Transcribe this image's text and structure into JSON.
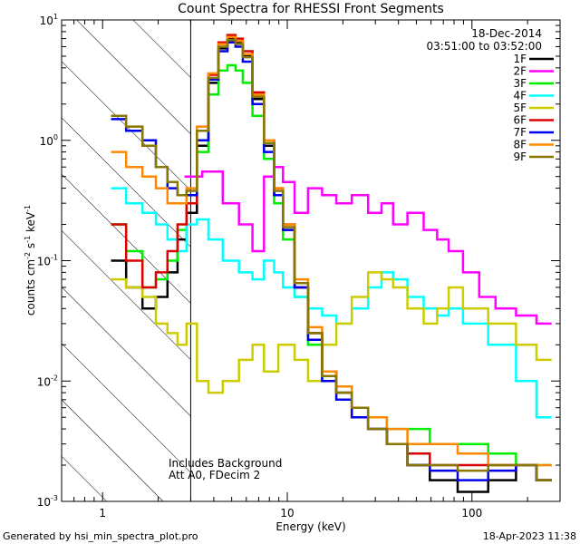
{
  "chart_data": {
    "type": "line",
    "title": "Count Spectra for RHESSI Front Segments",
    "xlabel": "Energy (keV)",
    "ylabel": "counts cm-2 s-1 keV-1",
    "ylabel_parts": {
      "base": "counts cm",
      "e1": "-2",
      "s": " s",
      "e2": "-1",
      "k": " keV",
      "e3": "-1"
    },
    "x_scale": "log",
    "y_scale": "log",
    "xlim": [
      0.6,
      300
    ],
    "ylim": [
      0.001,
      10
    ],
    "x_ticks": [
      {
        "value": 1,
        "label": "1"
      },
      {
        "value": 10,
        "label": "10"
      },
      {
        "value": 100,
        "label": "100"
      }
    ],
    "y_ticks": [
      {
        "value": 0.001,
        "base": "10",
        "exp": "-3"
      },
      {
        "value": 0.01,
        "base": "10",
        "exp": "-2"
      },
      {
        "value": 0.1,
        "base": "10",
        "exp": "-1"
      },
      {
        "value": 1,
        "base": "10",
        "exp": "0"
      },
      {
        "value": 10,
        "base": "10",
        "exp": "1"
      }
    ],
    "hatched_region": {
      "x_from": 0.6,
      "x_to": 3
    },
    "date": "18-Dec-2014",
    "time_range": "03:51:00 to 03:52:00",
    "annotations": [
      "Includes Background",
      "Att A0, FDecim 2"
    ],
    "footer_left": "Generated by hsi_min_spectra_plot.pro",
    "footer_right": "18-Apr-2023 11:38",
    "legend_position": "top-right",
    "series": [
      {
        "name": "1F",
        "color": "#000000",
        "x": [
          1.2,
          1.5,
          1.8,
          2.1,
          2.4,
          2.7,
          3,
          3.5,
          4,
          4.5,
          5,
          5.5,
          6,
          7,
          8,
          9,
          10,
          12,
          14,
          17,
          20,
          25,
          30,
          40,
          50,
          70,
          100,
          150,
          200,
          250
        ],
        "y": [
          0.1,
          0.06,
          0.04,
          0.05,
          0.08,
          0.15,
          0.25,
          0.9,
          3.0,
          5.8,
          7.0,
          6.5,
          5.0,
          2.2,
          0.9,
          0.35,
          0.18,
          0.06,
          0.025,
          0.012,
          0.008,
          0.005,
          0.004,
          0.003,
          0.002,
          0.0015,
          0.0012,
          0.0015,
          0.002,
          0.0015
        ]
      },
      {
        "name": "2F",
        "color": "#ff00ff",
        "x": [
          3,
          4,
          5,
          6,
          7,
          8,
          9,
          10,
          12,
          14,
          17,
          20,
          25,
          30,
          35,
          40,
          50,
          60,
          70,
          80,
          100,
          120,
          150,
          200,
          250
        ],
        "y": [
          0.5,
          0.55,
          0.3,
          0.2,
          0.12,
          0.5,
          0.6,
          0.45,
          0.25,
          0.4,
          0.35,
          0.3,
          0.35,
          0.25,
          0.3,
          0.2,
          0.25,
          0.18,
          0.15,
          0.12,
          0.08,
          0.05,
          0.04,
          0.035,
          0.03
        ]
      },
      {
        "name": "3F",
        "color": "#00ee00",
        "x": [
          1.2,
          1.5,
          1.8,
          2.1,
          2.4,
          2.7,
          3,
          3.5,
          4,
          4.5,
          5,
          5.5,
          6,
          7,
          8,
          9,
          10,
          12,
          14,
          17,
          20,
          25,
          30,
          40,
          50,
          70,
          100,
          150,
          200,
          250
        ],
        "y": [
          0.2,
          0.12,
          0.06,
          0.07,
          0.1,
          0.18,
          0.3,
          0.8,
          2.4,
          3.8,
          4.2,
          3.8,
          3.0,
          1.6,
          0.7,
          0.3,
          0.15,
          0.05,
          0.02,
          0.01,
          0.008,
          0.006,
          0.005,
          0.004,
          0.004,
          0.003,
          0.003,
          0.0025,
          0.002,
          0.002
        ]
      },
      {
        "name": "4F",
        "color": "#00ffff",
        "x": [
          1.2,
          1.5,
          1.8,
          2.1,
          2.4,
          2.7,
          3,
          3.5,
          4,
          5,
          6,
          7,
          8,
          9,
          10,
          12,
          14,
          17,
          20,
          25,
          30,
          35,
          40,
          50,
          60,
          70,
          80,
          100,
          150,
          200,
          250
        ],
        "y": [
          0.4,
          0.3,
          0.25,
          0.2,
          0.15,
          0.12,
          0.2,
          0.22,
          0.15,
          0.1,
          0.08,
          0.07,
          0.1,
          0.08,
          0.06,
          0.05,
          0.04,
          0.035,
          0.03,
          0.04,
          0.06,
          0.08,
          0.07,
          0.05,
          0.04,
          0.035,
          0.04,
          0.03,
          0.02,
          0.01,
          0.005
        ]
      },
      {
        "name": "5F",
        "color": "#cccc00",
        "x": [
          1.2,
          1.5,
          1.8,
          2.1,
          2.4,
          2.7,
          3,
          3.5,
          4,
          5,
          6,
          7,
          8,
          10,
          12,
          14,
          17,
          20,
          25,
          30,
          35,
          40,
          50,
          60,
          70,
          80,
          100,
          150,
          200,
          250
        ],
        "y": [
          0.07,
          0.06,
          0.05,
          0.03,
          0.025,
          0.02,
          0.03,
          0.01,
          0.008,
          0.01,
          0.015,
          0.02,
          0.012,
          0.02,
          0.015,
          0.01,
          0.02,
          0.03,
          0.05,
          0.08,
          0.07,
          0.06,
          0.04,
          0.03,
          0.04,
          0.06,
          0.04,
          0.03,
          0.02,
          0.015
        ]
      },
      {
        "name": "6F",
        "color": "#dd0000",
        "x": [
          1.2,
          1.5,
          1.8,
          2.1,
          2.4,
          2.7,
          3,
          3.5,
          4,
          4.5,
          5,
          5.5,
          6,
          7,
          8,
          9,
          10,
          12,
          14,
          17,
          20,
          25,
          30,
          40,
          50,
          70,
          100,
          150,
          200,
          250
        ],
        "y": [
          0.2,
          0.1,
          0.06,
          0.08,
          0.12,
          0.2,
          0.3,
          1.2,
          3.5,
          6.5,
          7.5,
          7.0,
          5.5,
          2.5,
          1.0,
          0.4,
          0.2,
          0.06,
          0.025,
          0.012,
          0.008,
          0.005,
          0.004,
          0.003,
          0.0025,
          0.002,
          0.002,
          0.002,
          0.002,
          0.0015
        ]
      },
      {
        "name": "7F",
        "color": "#0000ee",
        "x": [
          1.2,
          1.5,
          1.8,
          2.1,
          2.4,
          2.7,
          3,
          3.5,
          4,
          4.5,
          5,
          5.5,
          6,
          7,
          8,
          9,
          10,
          12,
          14,
          17,
          20,
          25,
          30,
          40,
          50,
          70,
          100,
          150,
          200,
          250
        ],
        "y": [
          1.5,
          1.2,
          1.0,
          0.6,
          0.4,
          0.35,
          0.35,
          1.0,
          3.2,
          5.5,
          6.5,
          6.0,
          4.5,
          2.0,
          0.8,
          0.35,
          0.18,
          0.06,
          0.022,
          0.01,
          0.007,
          0.005,
          0.004,
          0.003,
          0.002,
          0.0018,
          0.0015,
          0.0018,
          0.002,
          0.0015
        ]
      },
      {
        "name": "8F",
        "color": "#ff8800",
        "x": [
          1.2,
          1.5,
          1.8,
          2.1,
          2.4,
          2.7,
          3,
          3.5,
          4,
          4.5,
          5,
          5.5,
          6,
          7,
          8,
          9,
          10,
          12,
          14,
          17,
          20,
          25,
          30,
          40,
          50,
          70,
          100,
          150,
          200,
          250
        ],
        "y": [
          0.8,
          0.6,
          0.5,
          0.4,
          0.3,
          0.3,
          0.4,
          1.3,
          3.6,
          6.3,
          7.2,
          6.7,
          5.2,
          2.4,
          1.0,
          0.4,
          0.2,
          0.07,
          0.028,
          0.012,
          0.009,
          0.006,
          0.005,
          0.004,
          0.003,
          0.003,
          0.0025,
          0.002,
          0.002,
          0.002
        ]
      },
      {
        "name": "9F",
        "color": "#887700",
        "x": [
          1.2,
          1.5,
          1.8,
          2.1,
          2.4,
          2.7,
          3,
          3.5,
          4,
          4.5,
          5,
          5.5,
          6,
          7,
          8,
          9,
          10,
          12,
          14,
          17,
          20,
          25,
          30,
          40,
          50,
          70,
          100,
          150,
          200,
          250
        ],
        "y": [
          1.6,
          1.3,
          0.9,
          0.6,
          0.45,
          0.35,
          0.38,
          1.2,
          3.3,
          6.0,
          6.8,
          6.3,
          4.9,
          2.3,
          0.95,
          0.38,
          0.19,
          0.065,
          0.025,
          0.011,
          0.008,
          0.006,
          0.004,
          0.003,
          0.002,
          0.002,
          0.0018,
          0.002,
          0.002,
          0.0015
        ]
      }
    ]
  }
}
